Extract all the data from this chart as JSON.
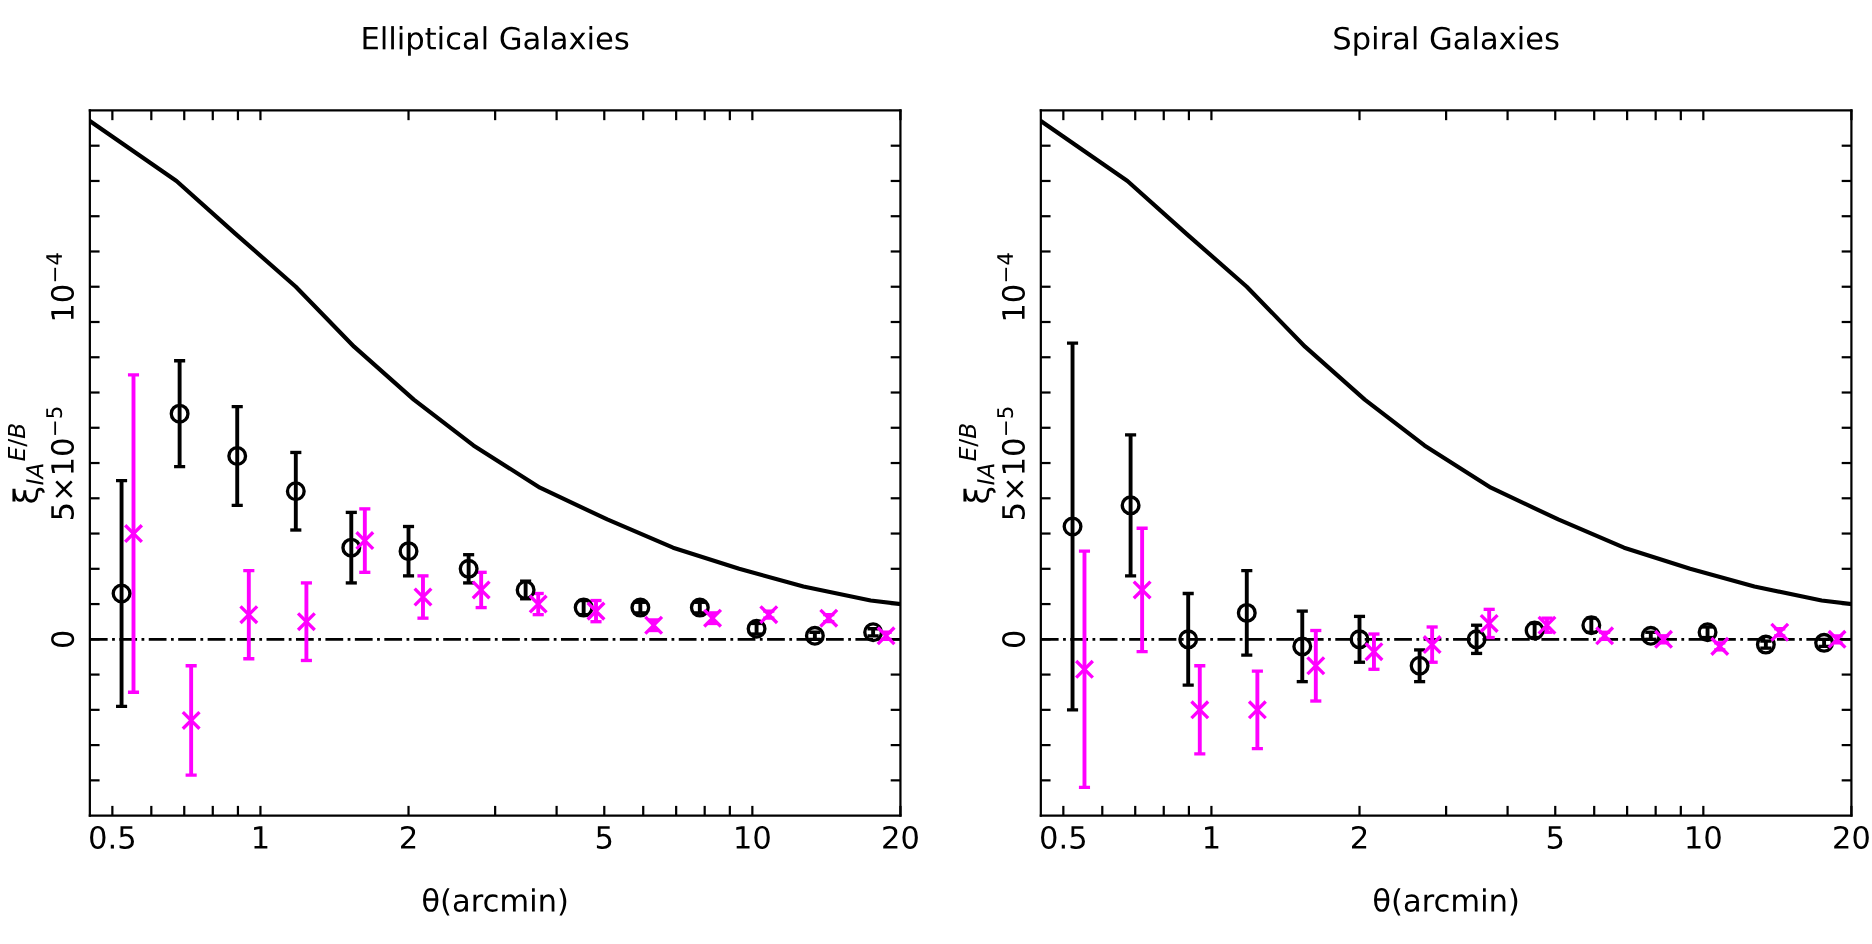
{
  "chart_data": [
    {
      "type": "scatter",
      "title": "Elliptical Galaxies",
      "xlabel": "θ(arcmin)",
      "ylabel": "ξ$_{IA}$$^{E/B}$",
      "log": "x",
      "grid": false,
      "xlim": [
        0.45,
        20
      ],
      "ylim": [
        -5e-05,
        0.00015
      ],
      "xticks": [
        0.5,
        {
          "value": 0.6,
          "label": null
        },
        {
          "value": 0.7,
          "label": null
        },
        {
          "value": 0.8,
          "label": null
        },
        {
          "value": 0.9,
          "label": null
        },
        1,
        2,
        {
          "value": 3,
          "label": null
        },
        {
          "value": 4,
          "label": null
        },
        5,
        {
          "value": 6,
          "label": null
        },
        {
          "value": 7,
          "label": null
        },
        {
          "value": 8,
          "label": null
        },
        {
          "value": 9,
          "label": null
        },
        10,
        20
      ],
      "yticks": [
        {
          "value": -4e-05,
          "label": null
        },
        {
          "value": -3e-05,
          "label": null
        },
        {
          "value": -2e-05,
          "label": null
        },
        {
          "value": -1e-05,
          "label": null
        },
        0,
        {
          "value": 1e-05,
          "label": null
        },
        {
          "value": 2e-05,
          "label": null
        },
        {
          "value": 3e-05,
          "label": null
        },
        {
          "value": 4e-05,
          "label": null
        },
        {
          "value": 5e-05,
          "label": "5×10$^{−5}$"
        },
        {
          "value": 6e-05,
          "label": null
        },
        {
          "value": 7e-05,
          "label": null
        },
        {
          "value": 8e-05,
          "label": null
        },
        {
          "value": 9e-05,
          "label": null
        },
        {
          "value": 0.0001,
          "label": "10$^{−4}$"
        },
        {
          "value": 0.00011,
          "label": null
        },
        {
          "value": 0.00012,
          "label": null
        },
        {
          "value": 0.00013,
          "label": null
        },
        {
          "value": 0.00014,
          "label": null
        }
      ],
      "ref_lines": [
        {
          "axis": "y",
          "value": 0,
          "color": "#000000",
          "line_style": "dashdot"
        }
      ],
      "series": [
        {
          "type": "line",
          "color": "#000000",
          "line_style": "solid",
          "marker": "none",
          "x": [
            0.45,
            0.675,
            0.89,
            1.18,
            1.55,
            2.05,
            2.71,
            3.7,
            5.07,
            6.9,
            9.4,
            12.7,
            17.4,
            20
          ],
          "values": [
            0.000147,
            0.00013,
            0.000115,
            0.0001,
            8.3e-05,
            6.8e-05,
            5.5e-05,
            4.3e-05,
            3.4e-05,
            2.6e-05,
            2e-05,
            1.5e-05,
            1.1e-05,
            1e-05
          ]
        },
        {
          "color": "#000000",
          "marker": "circle",
          "x": [
            0.522,
            0.685,
            0.897,
            1.18,
            1.53,
            2.0,
            2.65,
            3.46,
            4.54,
            5.92,
            7.82,
            10.2,
            13.4,
            17.6
          ],
          "values": [
            1.3e-05,
            6.4e-05,
            5.2e-05,
            4.2e-05,
            2.6e-05,
            2.5e-05,
            2e-05,
            1.4e-05,
            9e-06,
            9e-06,
            9e-06,
            3e-06,
            1e-06,
            2e-06
          ],
          "errors": [
            3.2e-05,
            1.5e-05,
            1.4e-05,
            1.1e-05,
            1e-05,
            7e-06,
            4e-06,
            2.5e-06,
            2e-06,
            1.5e-06,
            1.5e-06,
            1.5e-06,
            1e-06,
            1e-06
          ]
        },
        {
          "color": "#ff00ff",
          "marker": "cross",
          "x": [
            0.552,
            0.723,
            0.947,
            1.24,
            1.63,
            2.14,
            2.81,
            3.67,
            4.81,
            6.3,
            8.3,
            10.8,
            14.3,
            18.7
          ],
          "values": [
            3e-05,
            -2.3e-05,
            7e-06,
            5e-06,
            2.8e-05,
            1.2e-05,
            1.4e-05,
            1e-05,
            8e-06,
            4e-06,
            6e-06,
            7e-06,
            6e-06,
            1e-06
          ],
          "errors": [
            4.5e-05,
            1.55e-05,
            1.25e-05,
            1.1e-05,
            9e-06,
            6e-06,
            5e-06,
            3e-06,
            3e-06,
            1.5e-06,
            1.5e-06,
            1e-06,
            1e-06,
            1e-06
          ]
        }
      ]
    },
    {
      "type": "scatter",
      "title": "Spiral Galaxies",
      "xlabel": "θ(arcmin)",
      "ylabel": "ξ$_{IA}$$^{E/B}$",
      "log": "x",
      "grid": false,
      "xlim": [
        0.45,
        20
      ],
      "ylim": [
        -5e-05,
        0.00015
      ],
      "xticks": [
        0.5,
        {
          "value": 0.6,
          "label": null
        },
        {
          "value": 0.7,
          "label": null
        },
        {
          "value": 0.8,
          "label": null
        },
        {
          "value": 0.9,
          "label": null
        },
        1,
        2,
        {
          "value": 3,
          "label": null
        },
        {
          "value": 4,
          "label": null
        },
        5,
        {
          "value": 6,
          "label": null
        },
        {
          "value": 7,
          "label": null
        },
        {
          "value": 8,
          "label": null
        },
        {
          "value": 9,
          "label": null
        },
        10,
        20
      ],
      "yticks": [
        {
          "value": -4e-05,
          "label": null
        },
        {
          "value": -3e-05,
          "label": null
        },
        {
          "value": -2e-05,
          "label": null
        },
        {
          "value": -1e-05,
          "label": null
        },
        0,
        {
          "value": 1e-05,
          "label": null
        },
        {
          "value": 2e-05,
          "label": null
        },
        {
          "value": 3e-05,
          "label": null
        },
        {
          "value": 4e-05,
          "label": null
        },
        {
          "value": 5e-05,
          "label": "5×10$^{−5}$"
        },
        {
          "value": 6e-05,
          "label": null
        },
        {
          "value": 7e-05,
          "label": null
        },
        {
          "value": 8e-05,
          "label": null
        },
        {
          "value": 9e-05,
          "label": null
        },
        {
          "value": 0.0001,
          "label": "10$^{−4}$"
        },
        {
          "value": 0.00011,
          "label": null
        },
        {
          "value": 0.00012,
          "label": null
        },
        {
          "value": 0.00013,
          "label": null
        },
        {
          "value": 0.00014,
          "label": null
        }
      ],
      "ref_lines": [
        {
          "axis": "y",
          "value": 0,
          "color": "#000000",
          "line_style": "dashdot"
        }
      ],
      "series": [
        {
          "type": "line",
          "color": "#000000",
          "line_style": "solid",
          "marker": "none",
          "x": [
            0.45,
            0.675,
            0.89,
            1.18,
            1.55,
            2.05,
            2.71,
            3.7,
            5.07,
            6.9,
            9.4,
            12.7,
            17.4,
            20
          ],
          "values": [
            0.000147,
            0.00013,
            0.000115,
            0.0001,
            8.3e-05,
            6.8e-05,
            5.5e-05,
            4.3e-05,
            3.4e-05,
            2.6e-05,
            2e-05,
            1.5e-05,
            1.1e-05,
            1e-05
          ]
        },
        {
          "color": "#000000",
          "marker": "circle",
          "x": [
            0.522,
            0.685,
            0.897,
            1.18,
            1.53,
            2.0,
            2.65,
            3.46,
            4.54,
            5.92,
            7.82,
            10.2,
            13.4,
            17.6
          ],
          "values": [
            3.2e-05,
            3.8e-05,
            0,
            7.5e-06,
            -2e-06,
            0,
            -7.5e-06,
            0,
            2.5e-06,
            4e-06,
            1e-06,
            2e-06,
            -1.5e-06,
            -1e-06
          ],
          "errors": [
            5.2e-05,
            2e-05,
            1.3e-05,
            1.2e-05,
            1e-05,
            6.5e-06,
            4.5e-06,
            4e-06,
            2e-06,
            2e-06,
            1e-06,
            1.5e-06,
            1e-06,
            1e-06
          ]
        },
        {
          "color": "#ff00ff",
          "marker": "cross",
          "x": [
            0.552,
            0.723,
            0.947,
            1.24,
            1.63,
            2.14,
            2.81,
            3.67,
            4.81,
            6.3,
            8.3,
            10.8,
            14.3,
            18.7
          ],
          "values": [
            -8.5e-06,
            1.4e-05,
            -2e-05,
            -2e-05,
            -7.5e-06,
            -3.5e-06,
            -1.5e-06,
            4.5e-06,
            4e-06,
            1e-06,
            0,
            -2e-06,
            2e-06,
            0
          ],
          "errors": [
            3.35e-05,
            1.75e-05,
            1.25e-05,
            1.1e-05,
            1e-05,
            5e-06,
            5e-06,
            4e-06,
            2e-06,
            1e-06,
            1e-06,
            1e-06,
            1e-06,
            1e-06
          ]
        }
      ]
    }
  ]
}
